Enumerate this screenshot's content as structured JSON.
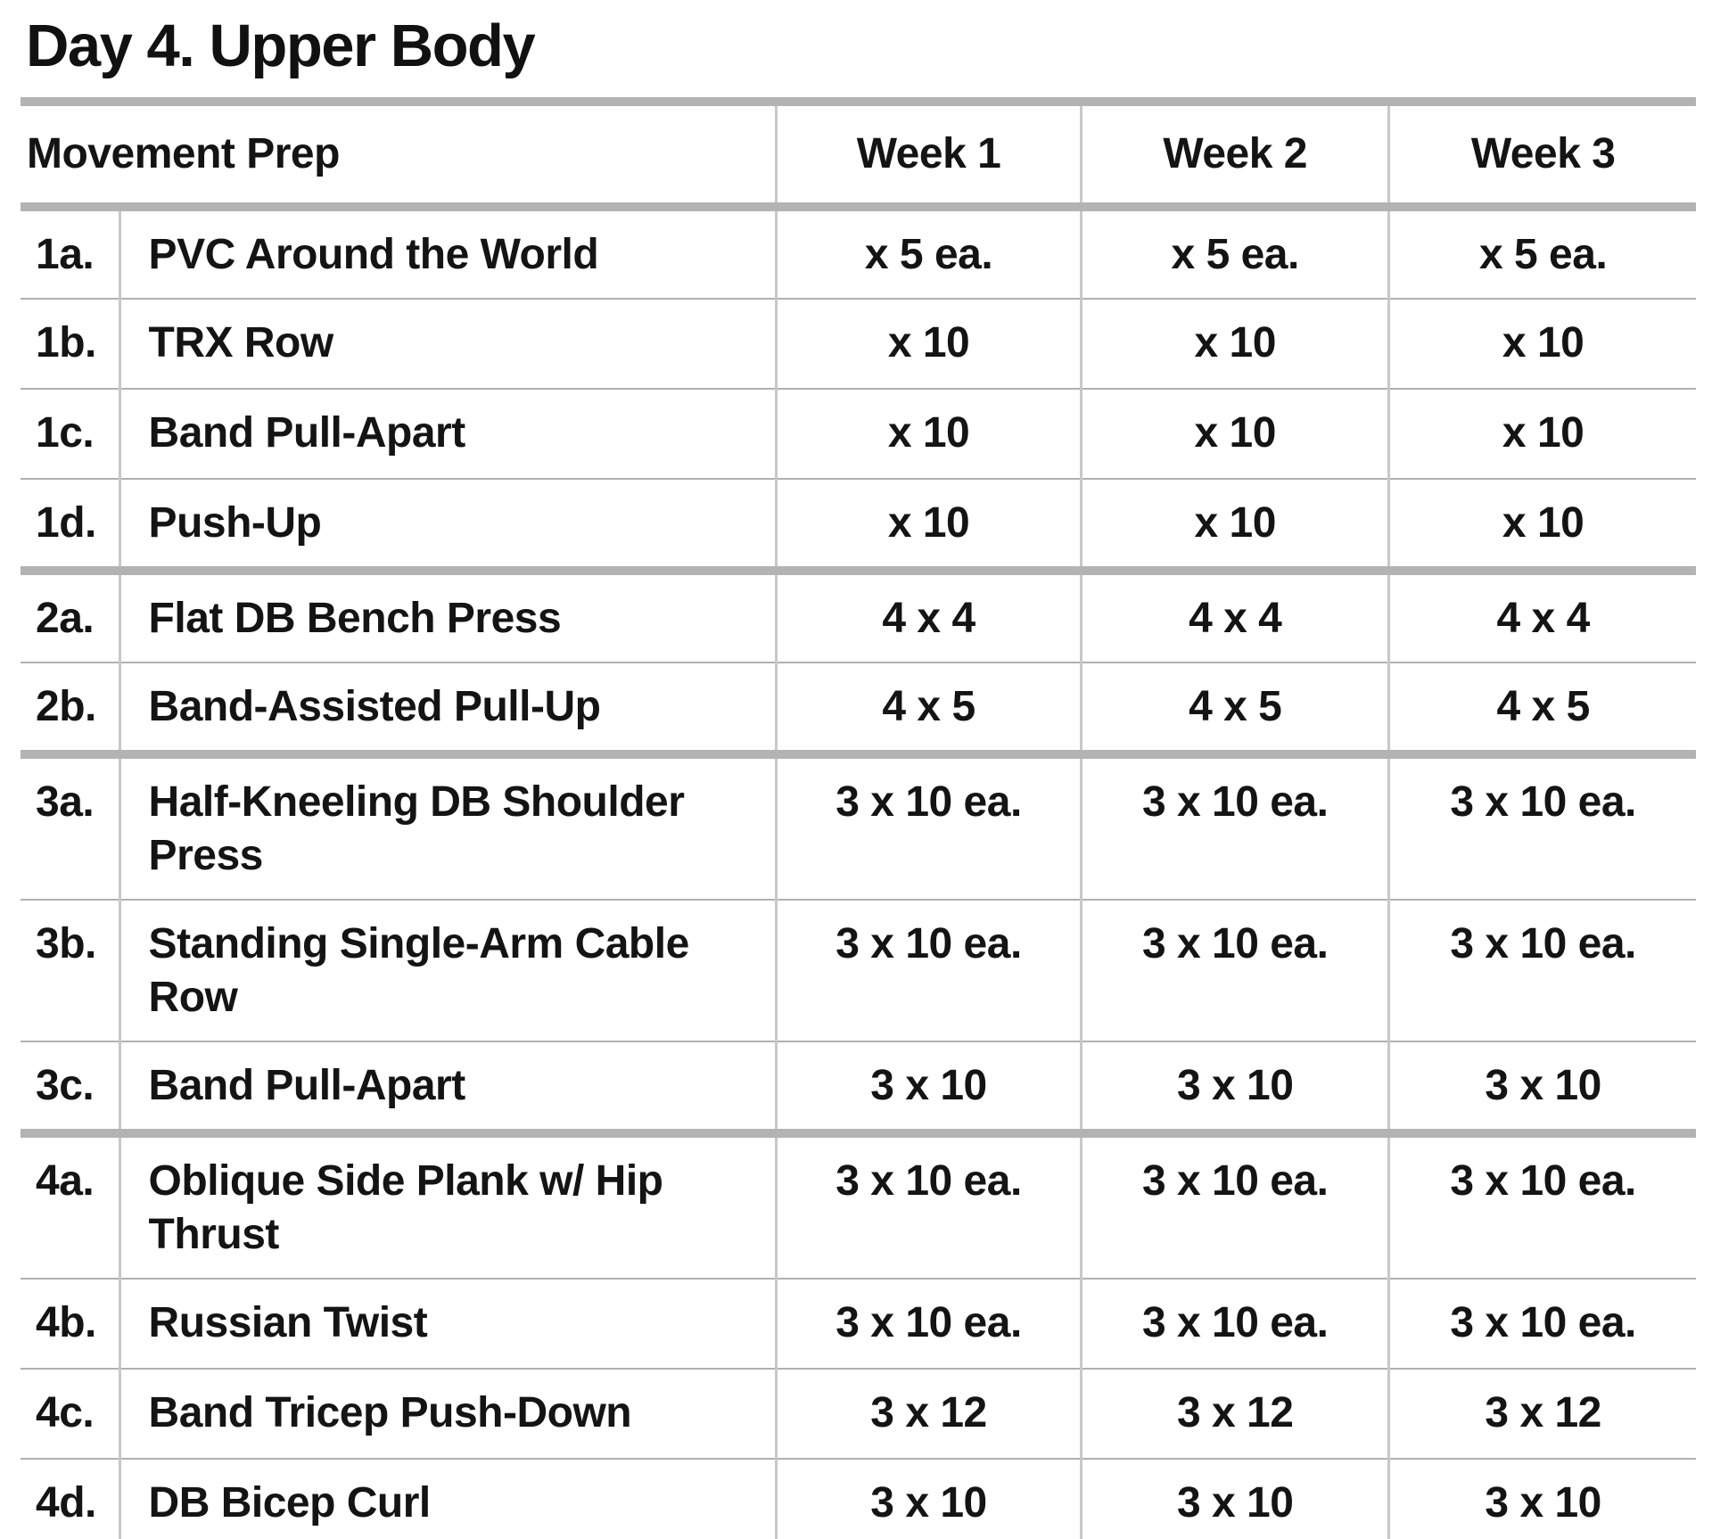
{
  "title": "Day 4. Upper Body",
  "table": {
    "header": {
      "prep_label": "Movement Prep",
      "weeks": [
        "Week 1",
        "Week 2",
        "Week 3"
      ]
    },
    "rows": [
      {
        "num": "1a.",
        "name": "PVC Around the World",
        "weeks": [
          "x 5 ea.",
          "x 5 ea.",
          "x 5 ea."
        ],
        "group_start": false,
        "two_line": false
      },
      {
        "num": "1b.",
        "name": "TRX Row",
        "weeks": [
          "x 10",
          "x 10",
          "x 10"
        ],
        "group_start": false,
        "two_line": false
      },
      {
        "num": "1c.",
        "name": "Band Pull-Apart",
        "weeks": [
          "x 10",
          "x 10",
          "x 10"
        ],
        "group_start": false,
        "two_line": false
      },
      {
        "num": "1d.",
        "name": "Push-Up",
        "weeks": [
          "x 10",
          "x 10",
          "x 10"
        ],
        "group_start": false,
        "two_line": false
      },
      {
        "num": "2a.",
        "name": "Flat DB Bench Press",
        "weeks": [
          "4 x 4",
          "4 x 4",
          "4 x 4"
        ],
        "group_start": true,
        "two_line": false
      },
      {
        "num": "2b.",
        "name": "Band-Assisted Pull-Up",
        "weeks": [
          "4 x 5",
          "4 x 5",
          "4 x 5"
        ],
        "group_start": false,
        "two_line": false
      },
      {
        "num": "3a.",
        "name": "Half-Kneeling DB Shoulder\nPress",
        "weeks": [
          "3 x 10 ea.",
          "3 x 10 ea.",
          "3 x 10 ea."
        ],
        "group_start": true,
        "two_line": true
      },
      {
        "num": "3b.",
        "name": "Standing Single-Arm Cable\nRow",
        "weeks": [
          "3 x 10 ea.",
          "3 x 10 ea.",
          "3 x 10 ea."
        ],
        "group_start": false,
        "two_line": true
      },
      {
        "num": "3c.",
        "name": "Band Pull-Apart",
        "weeks": [
          "3 x 10",
          "3 x 10",
          "3 x 10"
        ],
        "group_start": false,
        "two_line": false
      },
      {
        "num": "4a.",
        "name": "Oblique Side Plank w/ Hip\nThrust",
        "weeks": [
          "3 x 10 ea.",
          "3 x 10 ea.",
          "3 x 10 ea."
        ],
        "group_start": true,
        "two_line": true
      },
      {
        "num": "4b.",
        "name": "Russian Twist",
        "weeks": [
          "3 x 10 ea.",
          "3 x 10 ea.",
          "3 x 10 ea."
        ],
        "group_start": false,
        "two_line": false
      },
      {
        "num": "4c.",
        "name": "Band Tricep Push-Down",
        "weeks": [
          "3 x 12",
          "3 x 12",
          "3 x 12"
        ],
        "group_start": false,
        "two_line": false
      },
      {
        "num": "4d.",
        "name": "DB Bicep Curl",
        "weeks": [
          "3 x 10",
          "3 x 10",
          "3 x 10"
        ],
        "group_start": false,
        "two_line": false
      }
    ]
  },
  "colors": {
    "text": "#141414",
    "rule_thick": "#b3b3b3",
    "rule_thin": "#b0b0b0",
    "rule_vertical": "#c8c8c8",
    "background": "#ffffff"
  }
}
